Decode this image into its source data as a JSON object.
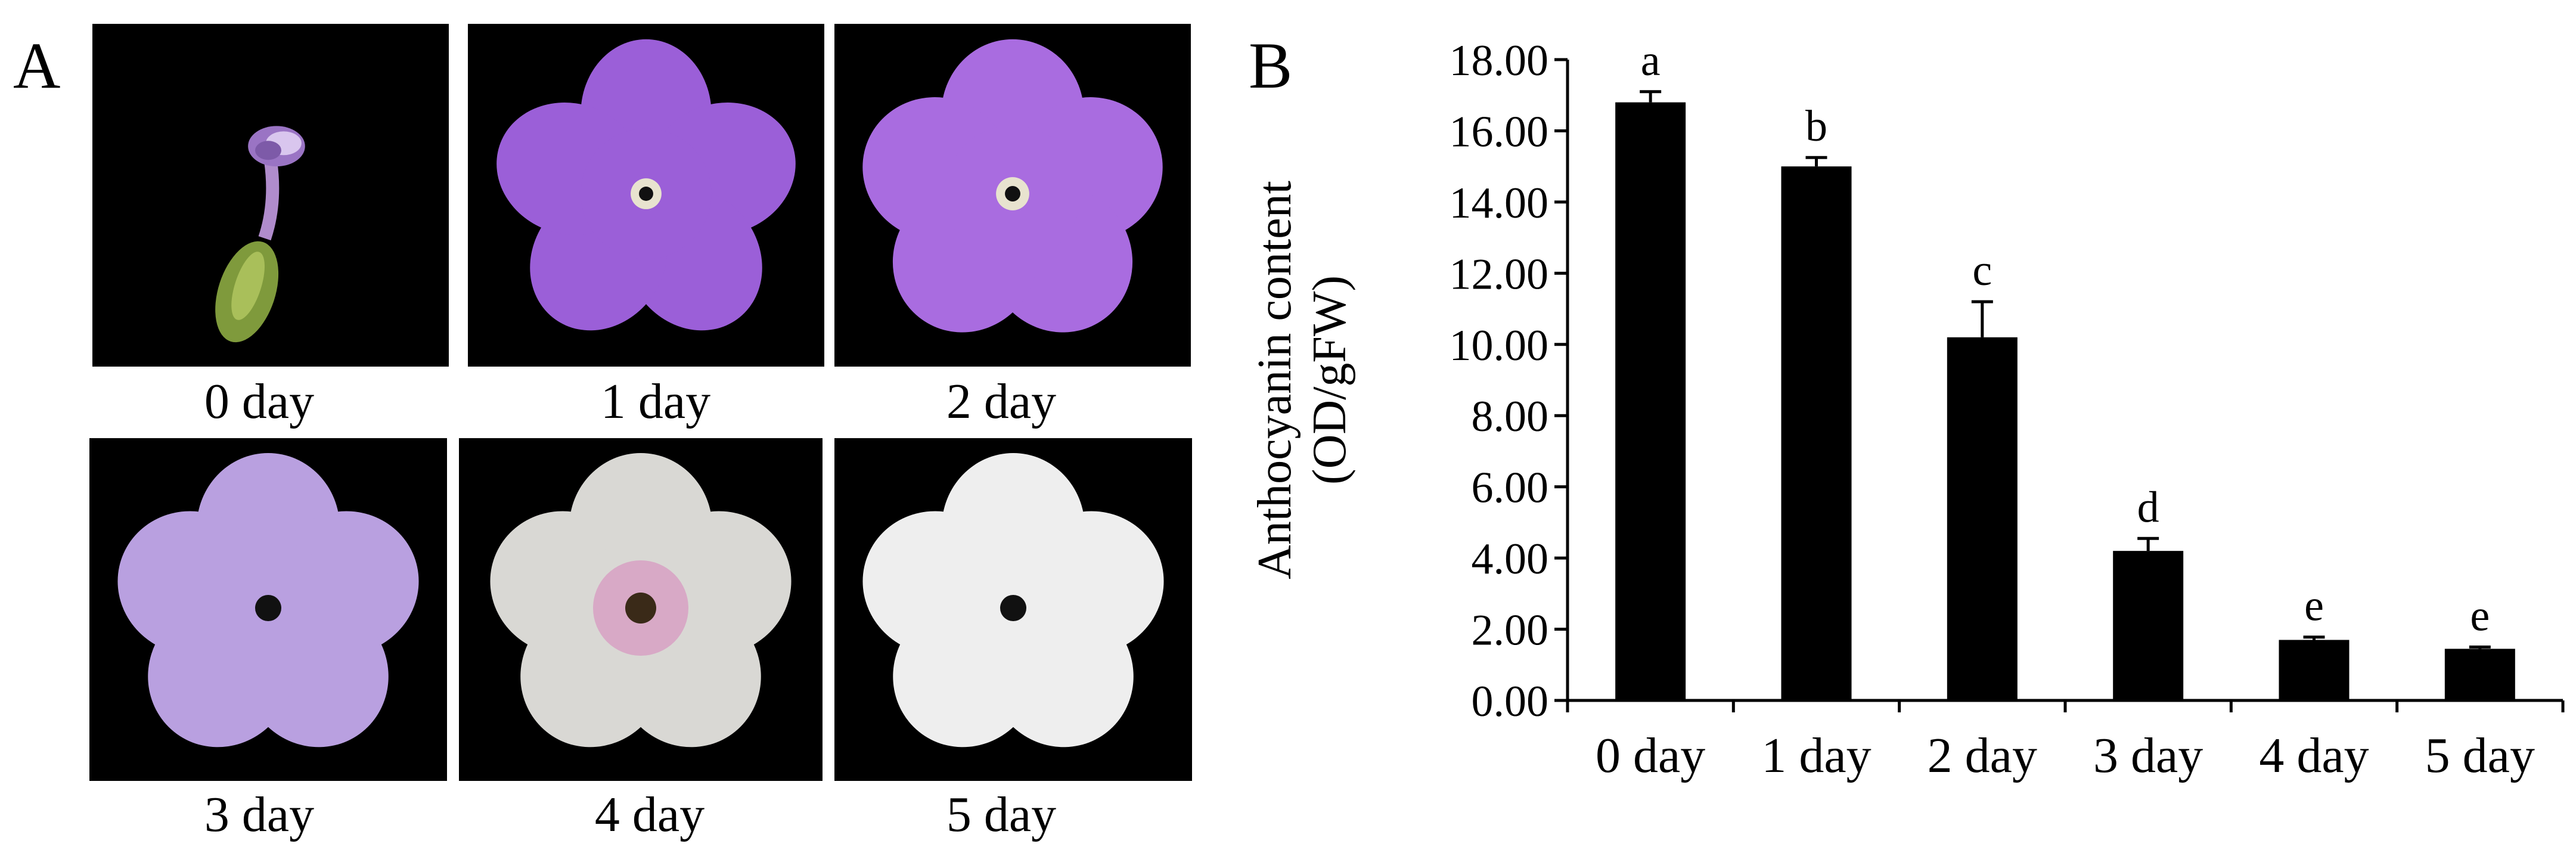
{
  "panel_a": {
    "letter": "A",
    "captions": [
      "0 day",
      "1 day",
      "2 day",
      "3 day",
      "4 day",
      "5 day"
    ]
  },
  "panel_b": {
    "letter": "B"
  },
  "chart_data": {
    "type": "bar",
    "title": "",
    "xlabel": "",
    "ylabel": "Anthocyanin content (OD/gFW)",
    "ylabel_lines": [
      "Anthocyanin content",
      "(OD/gFW)"
    ],
    "categories": [
      "0 day",
      "1 day",
      "2 day",
      "3 day",
      "4 day",
      "5 day"
    ],
    "values": [
      16.8,
      15.0,
      10.2,
      4.2,
      1.7,
      1.45
    ],
    "errors": [
      0.3,
      0.25,
      1.0,
      0.35,
      0.08,
      0.05
    ],
    "significance_letters": [
      "a",
      "b",
      "c",
      "d",
      "e",
      "e"
    ],
    "ylim": [
      0,
      18
    ],
    "yticks": [
      "0.00",
      "2.00",
      "4.00",
      "6.00",
      "8.00",
      "10.00",
      "12.00",
      "14.00",
      "16.00",
      "18.00"
    ],
    "grid": false,
    "bar_color": "#000000"
  }
}
